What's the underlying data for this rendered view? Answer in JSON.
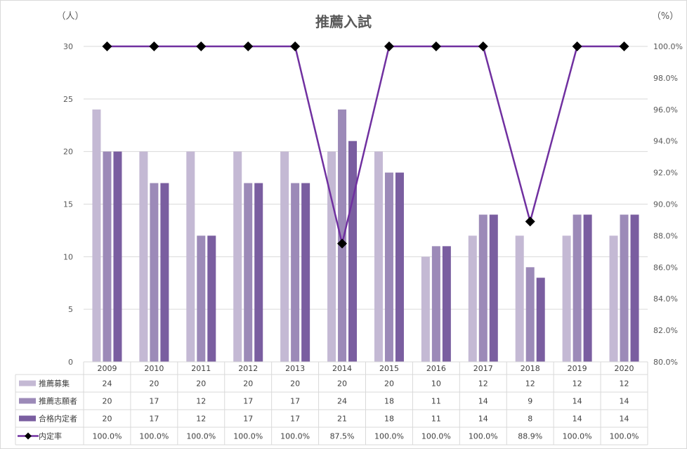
{
  "chart_data": {
    "type": "bar",
    "title": "推薦入試",
    "left_unit": "（人）",
    "right_unit": "（%）",
    "categories": [
      "2009",
      "2010",
      "2011",
      "2012",
      "2013",
      "2014",
      "2015",
      "2016",
      "2017",
      "2018",
      "2019",
      "2020"
    ],
    "ylim": [
      0,
      30
    ],
    "y_ticks": [
      "0",
      "5",
      "10",
      "15",
      "20",
      "25",
      "30"
    ],
    "y2lim": [
      80,
      100
    ],
    "y2_ticks": [
      "80.0%",
      "82.0%",
      "84.0%",
      "86.0%",
      "88.0%",
      "90.0%",
      "92.0%",
      "94.0%",
      "96.0%",
      "98.0%",
      "100.0%"
    ],
    "grid": true,
    "series": [
      {
        "name": "推薦募集",
        "type": "bar",
        "color": "#c4b9d4",
        "values": [
          24,
          20,
          20,
          20,
          20,
          20,
          20,
          10,
          12,
          12,
          12,
          12
        ]
      },
      {
        "name": "推薦志願者",
        "type": "bar",
        "color": "#9c8ab8",
        "values": [
          20,
          17,
          12,
          17,
          17,
          24,
          18,
          11,
          14,
          9,
          14,
          14
        ]
      },
      {
        "name": "合格内定者",
        "type": "bar",
        "color": "#7a5ea0",
        "values": [
          20,
          17,
          12,
          17,
          17,
          21,
          18,
          11,
          14,
          8,
          14,
          14
        ]
      },
      {
        "name": "内定率",
        "type": "line",
        "axis": "right",
        "color": "#7030a0",
        "marker": "diamond",
        "values": [
          100.0,
          100.0,
          100.0,
          100.0,
          100.0,
          87.5,
          100.0,
          100.0,
          100.0,
          88.9,
          100.0,
          100.0
        ],
        "labels": [
          "100.0%",
          "100.0%",
          "100.0%",
          "100.0%",
          "100.0%",
          "87.5%",
          "100.0%",
          "100.0%",
          "100.0%",
          "88.9%",
          "100.0%",
          "100.0%"
        ]
      }
    ]
  }
}
